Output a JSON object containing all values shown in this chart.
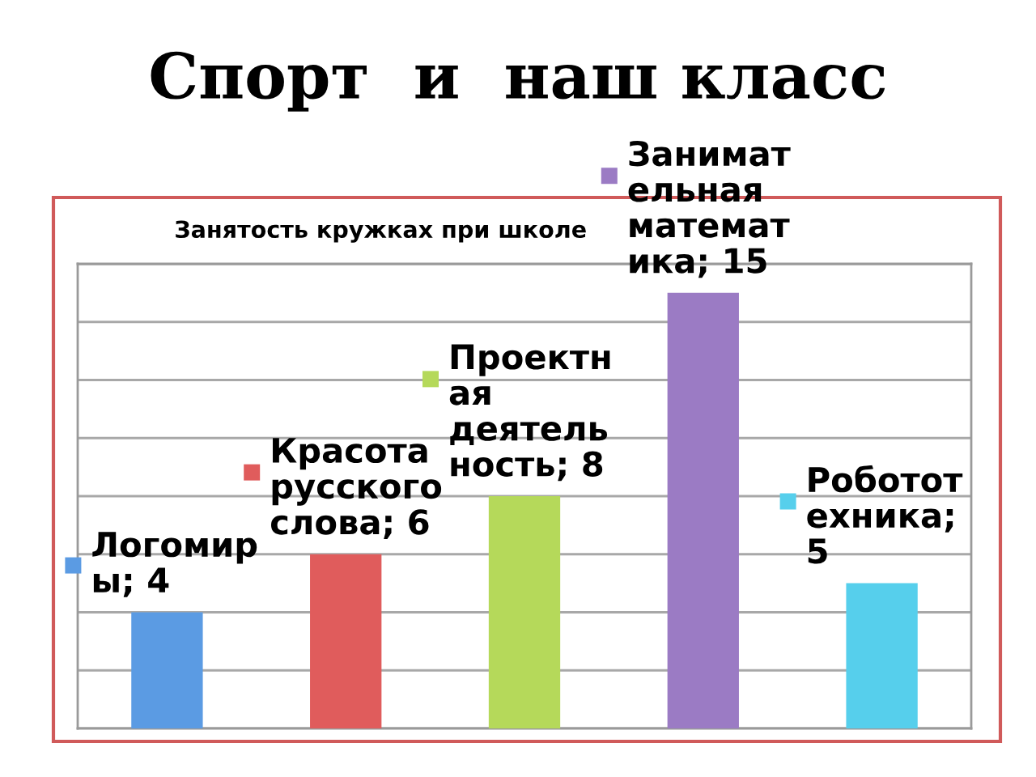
{
  "chart_data": {
    "type": "bar",
    "title": "Спорт  и  наш класс",
    "subtitle": "Занятость кружках при школе",
    "categories": [
      null,
      null,
      null,
      null,
      null
    ],
    "values": [
      4,
      6,
      8,
      15,
      5
    ],
    "value_labels": [
      "Логомиры; 4",
      "Красота русского слова; 6",
      "Проектная деятельность; 8",
      "Занимательная математика; 15",
      "Робототехника; 5"
    ],
    "colors": [
      "#5b9be3",
      "#e05c5c",
      "#b5d95a",
      "#9b7bc4",
      "#56cfec"
    ],
    "ylim": [
      0,
      16
    ],
    "yticks": [
      {
        "value": 0,
        "label": null
      },
      {
        "value": 2,
        "label": null
      },
      {
        "value": 4,
        "label": null
      },
      {
        "value": 6,
        "label": null
      },
      {
        "value": 8,
        "label": null
      },
      {
        "value": 10,
        "label": null
      },
      {
        "value": 12,
        "label": null
      },
      {
        "value": 14,
        "label": null
      },
      {
        "value": 16,
        "label": null
      }
    ],
    "grid": "y"
  }
}
